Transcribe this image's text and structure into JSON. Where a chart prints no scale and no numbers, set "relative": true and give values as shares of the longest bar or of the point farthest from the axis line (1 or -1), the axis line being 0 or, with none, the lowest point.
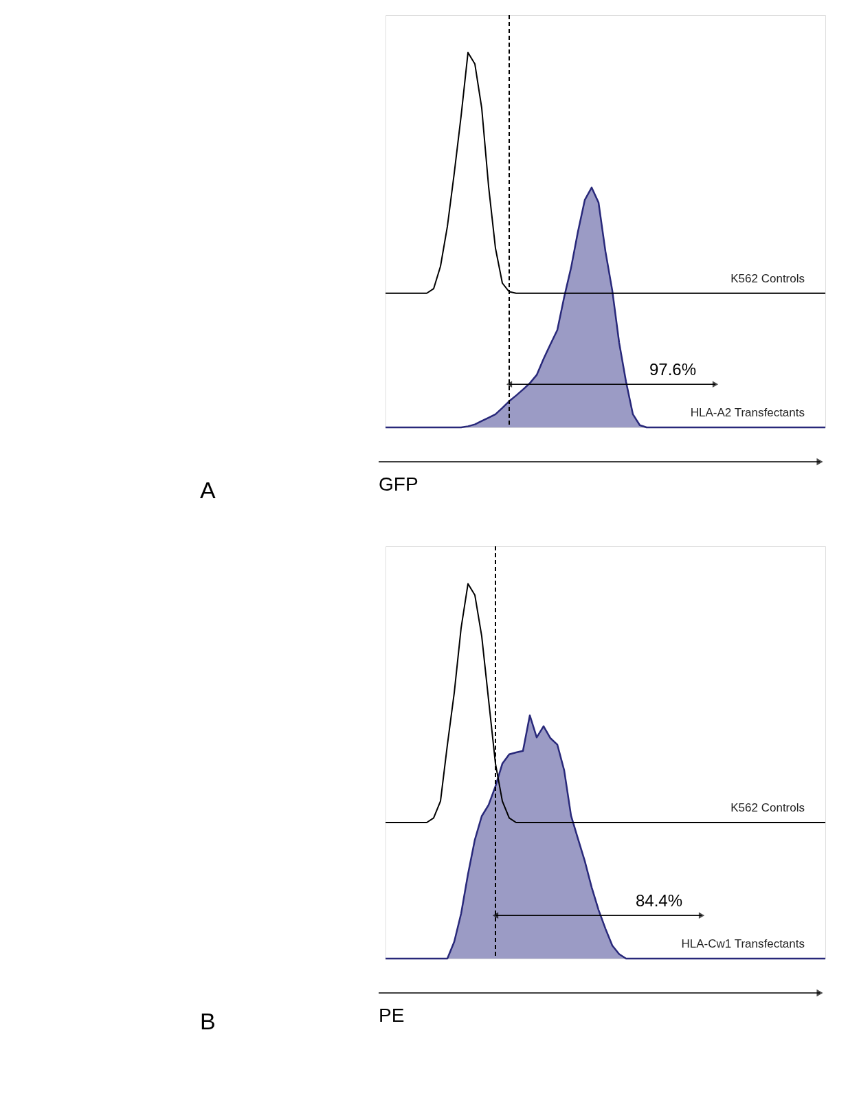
{
  "chart_data": [
    {
      "type": "line",
      "relative": true,
      "xlabel": "GFP",
      "categories": [
        null,
        null,
        null,
        null,
        null,
        null,
        null,
        null,
        null,
        null,
        null,
        null,
        null,
        null,
        null,
        null,
        null,
        null,
        null,
        null,
        null,
        null,
        null,
        null,
        null,
        null,
        null,
        null,
        null,
        null,
        null,
        null,
        null,
        null,
        null,
        null,
        null,
        null,
        null,
        null,
        null,
        null,
        null,
        null,
        null,
        null,
        null,
        null,
        null,
        null,
        null,
        null,
        null,
        null,
        null,
        null,
        null,
        null,
        null,
        null,
        null,
        null,
        null,
        null,
        null
      ],
      "series": [
        {
          "name": "HLA-A2 Transfectants",
          "type": "area",
          "color": "#9b9bc5",
          "values": [
            0,
            0,
            0,
            0,
            0,
            0,
            0,
            0,
            0,
            0,
            0,
            0,
            0.003,
            0.008,
            0.017,
            0.026,
            0.035,
            0.052,
            0.07,
            0.085,
            0.101,
            0.118,
            0.14,
            0.183,
            0.222,
            0.26,
            0.348,
            0.426,
            0.522,
            0.607,
            0.64,
            0.6,
            0.47,
            0.365,
            0.226,
            0.122,
            0.035,
            0.006,
            0,
            0,
            0,
            0,
            0,
            0,
            0,
            0,
            0,
            0,
            0,
            0,
            0,
            0,
            0,
            0,
            0,
            0,
            0,
            0,
            0,
            0,
            0,
            0,
            0,
            0,
            0
          ]
        },
        {
          "name": "K562 Controls",
          "color": "#000000",
          "values": [
            0.358,
            0.358,
            0.358,
            0.358,
            0.358,
            0.358,
            0.358,
            0.37,
            0.43,
            0.536,
            0.678,
            0.831,
            1,
            0.97,
            0.852,
            0.643,
            0.478,
            0.385,
            0.362,
            0.358,
            0.358,
            0.358,
            0.358,
            0.358,
            0.358,
            0.358,
            0.358,
            0.358,
            0.358,
            0.358,
            0.358,
            0.358,
            0.358,
            0.358,
            0.358,
            0.358,
            0.358,
            0.358,
            0.358,
            0.358,
            0.358,
            0.358,
            0.358,
            0.358,
            0.358,
            0.358,
            0.358,
            0.358,
            0.358,
            0.358,
            0.358,
            0.358,
            0.358,
            0.358,
            0.358,
            0.358,
            0.358,
            0.358,
            0.358,
            0.358,
            0.358,
            0.358,
            0.358,
            0.358,
            0.358
          ]
        }
      ],
      "annotations": [
        "97.6%",
        "A"
      ]
    },
    {
      "type": "line",
      "relative": true,
      "xlabel": "PE",
      "categories": [
        null,
        null,
        null,
        null,
        null,
        null,
        null,
        null,
        null,
        null,
        null,
        null,
        null,
        null,
        null,
        null,
        null,
        null,
        null,
        null,
        null,
        null,
        null,
        null,
        null,
        null,
        null,
        null,
        null,
        null,
        null,
        null,
        null,
        null,
        null,
        null,
        null,
        null,
        null,
        null,
        null,
        null,
        null,
        null,
        null,
        null,
        null,
        null,
        null,
        null,
        null,
        null,
        null,
        null,
        null,
        null,
        null,
        null,
        null,
        null,
        null,
        null,
        null,
        null,
        null
      ],
      "series": [
        {
          "name": "HLA-Cw1 Transfectants",
          "type": "area",
          "color": "#9b9bc5",
          "values": [
            0,
            0,
            0,
            0,
            0,
            0,
            0,
            0,
            0,
            0,
            0.045,
            0.12,
            0.225,
            0.317,
            0.38,
            0.41,
            0.46,
            0.52,
            0.545,
            0.55,
            0.554,
            0.649,
            0.59,
            0.62,
            0.588,
            0.571,
            0.502,
            0.381,
            0.32,
            0.26,
            0.19,
            0.13,
            0.08,
            0.035,
            0.012,
            0,
            0,
            0,
            0,
            0,
            0,
            0,
            0,
            0,
            0,
            0,
            0,
            0,
            0,
            0,
            0,
            0,
            0,
            0,
            0,
            0,
            0,
            0,
            0,
            0,
            0,
            0,
            0,
            0,
            0
          ]
        },
        {
          "name": "K562 Controls",
          "color": "#000000",
          "values": [
            0.363,
            0.363,
            0.363,
            0.363,
            0.363,
            0.363,
            0.363,
            0.375,
            0.42,
            0.57,
            0.709,
            0.882,
            1,
            0.97,
            0.86,
            0.69,
            0.52,
            0.42,
            0.375,
            0.363,
            0.363,
            0.363,
            0.363,
            0.363,
            0.363,
            0.363,
            0.363,
            0.363,
            0.363,
            0.363,
            0.363,
            0.363,
            0.363,
            0.363,
            0.363,
            0.363,
            0.363,
            0.363,
            0.363,
            0.363,
            0.363,
            0.363,
            0.363,
            0.363,
            0.363,
            0.363,
            0.363,
            0.363,
            0.363,
            0.363,
            0.363,
            0.363,
            0.363,
            0.363,
            0.363,
            0.363,
            0.363,
            0.363,
            0.363,
            0.363,
            0.363,
            0.363,
            0.363,
            0.363,
            0.363
          ]
        }
      ],
      "annotations": [
        "84.4%",
        "B"
      ]
    }
  ]
}
